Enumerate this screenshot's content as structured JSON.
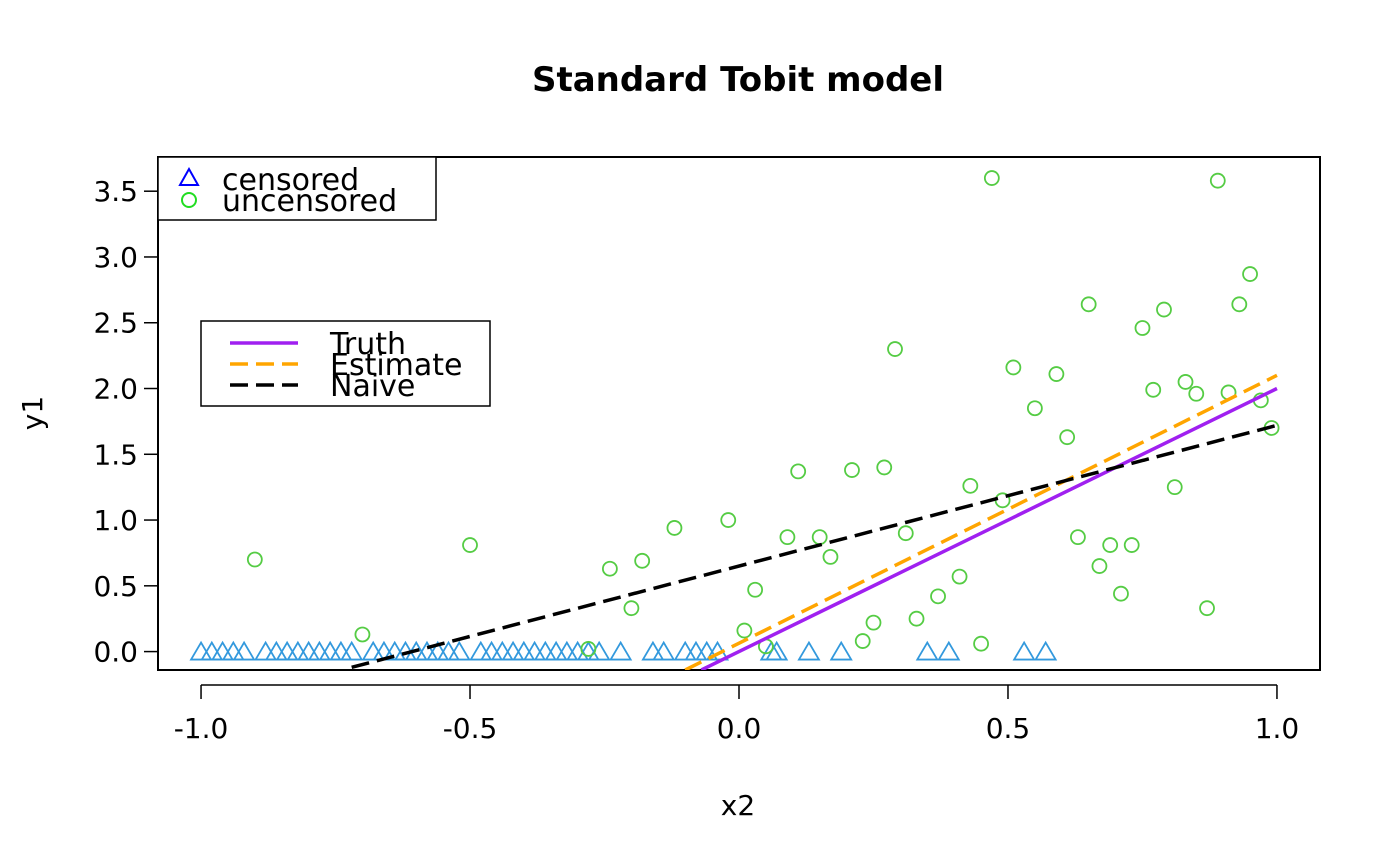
{
  "chart_data": {
    "type": "scatter",
    "title": "Standard Tobit model",
    "xlabel": "x2",
    "ylabel": "y1",
    "xlim": [
      -1.08,
      1.08
    ],
    "ylim": [
      -0.14,
      3.76
    ],
    "x_ticks": [
      {
        "value": -1.0,
        "label": "-1.0"
      },
      {
        "value": -0.5,
        "label": "-0.5"
      },
      {
        "value": 0.0,
        "label": "0.0"
      },
      {
        "value": 0.5,
        "label": "0.5"
      },
      {
        "value": 1.0,
        "label": "1.0"
      }
    ],
    "y_ticks": [
      {
        "value": 0.0,
        "label": "0.0"
      },
      {
        "value": 0.5,
        "label": "0.5"
      },
      {
        "value": 1.0,
        "label": "1.0"
      },
      {
        "value": 1.5,
        "label": "1.5"
      },
      {
        "value": 2.0,
        "label": "2.0"
      },
      {
        "value": 2.5,
        "label": "2.5"
      },
      {
        "value": 3.0,
        "label": "3.0"
      },
      {
        "value": 3.5,
        "label": "3.5"
      }
    ],
    "grid": false,
    "point_legend": {
      "position": "top-left",
      "entries": [
        {
          "label": "censored",
          "marker": "triangle",
          "color": "#0000ff"
        },
        {
          "label": "uncensored",
          "marker": "circle",
          "color": "#22dd22"
        }
      ]
    },
    "line_legend": {
      "position": "upper-left-inset",
      "entries": [
        {
          "label": "Truth",
          "color": "#a020f0",
          "dash": "solid"
        },
        {
          "label": "Estimate",
          "color": "#ffa500",
          "dash": "dashed"
        },
        {
          "label": "Naive",
          "color": "#000000",
          "dash": "dashed"
        }
      ]
    },
    "series": [
      {
        "name": "censored",
        "marker": "triangle",
        "color": "#3399dd",
        "x": [
          -1.0,
          -0.98,
          -0.96,
          -0.94,
          -0.92,
          -0.88,
          -0.86,
          -0.84,
          -0.82,
          -0.8,
          -0.78,
          -0.76,
          -0.74,
          -0.72,
          -0.68,
          -0.66,
          -0.64,
          -0.62,
          -0.6,
          -0.58,
          -0.56,
          -0.54,
          -0.52,
          -0.48,
          -0.46,
          -0.44,
          -0.42,
          -0.4,
          -0.38,
          -0.36,
          -0.34,
          -0.32,
          -0.3,
          -0.28,
          -0.26,
          -0.22,
          -0.16,
          -0.14,
          -0.1,
          -0.08,
          -0.06,
          -0.04,
          0.06,
          0.07,
          0.13,
          0.19,
          0.35,
          0.39,
          0.53,
          0.57
        ],
        "y": [
          0,
          0,
          0,
          0,
          0,
          0,
          0,
          0,
          0,
          0,
          0,
          0,
          0,
          0,
          0,
          0,
          0,
          0,
          0,
          0,
          0,
          0,
          0,
          0,
          0,
          0,
          0,
          0,
          0,
          0,
          0,
          0,
          0,
          0,
          0,
          0,
          0,
          0,
          0,
          0,
          0,
          0,
          0,
          0,
          0,
          0,
          0,
          0,
          0,
          0
        ]
      },
      {
        "name": "uncensored",
        "marker": "circle",
        "color": "#55cc44",
        "x": [
          -0.9,
          -0.7,
          -0.5,
          -0.28,
          -0.24,
          -0.2,
          -0.18,
          -0.12,
          -0.02,
          0.01,
          0.03,
          0.05,
          0.09,
          0.11,
          0.15,
          0.17,
          0.21,
          0.23,
          0.25,
          0.27,
          0.29,
          0.31,
          0.33,
          0.37,
          0.41,
          0.43,
          0.45,
          0.47,
          0.49,
          0.51,
          0.55,
          0.59,
          0.61,
          0.63,
          0.65,
          0.67,
          0.69,
          0.71,
          0.73,
          0.75,
          0.77,
          0.79,
          0.81,
          0.83,
          0.85,
          0.87,
          0.89,
          0.91,
          0.93,
          0.95,
          0.97,
          0.99
        ],
        "y": [
          0.7,
          0.13,
          0.81,
          0.02,
          0.63,
          0.33,
          0.69,
          0.94,
          1.0,
          0.16,
          0.47,
          0.04,
          0.87,
          1.37,
          0.87,
          0.72,
          1.38,
          0.08,
          0.22,
          1.4,
          2.3,
          0.9,
          0.25,
          0.42,
          0.57,
          1.26,
          0.06,
          3.6,
          1.15,
          2.16,
          1.85,
          2.11,
          1.63,
          0.87,
          2.64,
          0.65,
          0.81,
          0.44,
          0.81,
          2.46,
          1.99,
          2.6,
          1.25,
          2.05,
          1.96,
          0.33,
          3.58,
          1.97,
          2.64,
          2.87,
          1.91,
          1.7
        ]
      }
    ],
    "lines": [
      {
        "name": "Truth",
        "color": "#a020f0",
        "dash": "solid",
        "x": [
          -0.07,
          1.0
        ],
        "y": [
          -0.14,
          2.0
        ]
      },
      {
        "name": "Estimate",
        "color": "#ffa500",
        "dash": "dashed",
        "x": [
          -0.1,
          1.0
        ],
        "y": [
          -0.14,
          2.1
        ]
      },
      {
        "name": "Naive",
        "color": "#000000",
        "dash": "dashed",
        "x": [
          -0.72,
          1.0
        ],
        "y": [
          -0.12,
          1.72
        ]
      }
    ]
  }
}
